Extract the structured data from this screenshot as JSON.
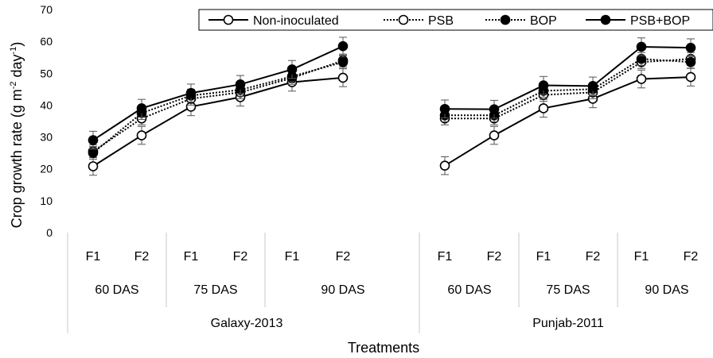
{
  "chart_data": {
    "type": "line",
    "ylabel_main": "Crop growth rate (g m",
    "ylabel_exp1": "-2",
    "ylabel_mid": " day",
    "ylabel_exp2": "-1",
    "ylabel_end": ")",
    "xlabel": "Treatments",
    "ylim": [
      0,
      70
    ],
    "yticks": [
      0,
      10,
      20,
      30,
      40,
      50,
      60,
      70
    ],
    "groups": [
      "Galaxy-2013",
      "Punjab-2011"
    ],
    "stages": [
      "60 DAS",
      "75 DAS",
      "90 DAS"
    ],
    "levels": [
      "F1",
      "F2"
    ],
    "legend_position": "top-right",
    "series": [
      {
        "name": "Non-inoculated",
        "style": "solid",
        "marker": "open",
        "values": [
          [
            20.8,
            30.5,
            39.5,
            42.5,
            47.2,
            48.6
          ],
          [
            21.0,
            30.5,
            39.0,
            42.0,
            48.2,
            48.8
          ]
        ],
        "errors": [
          [
            2.8,
            2.8,
            2.8,
            2.8,
            2.8,
            2.8
          ],
          [
            2.8,
            2.8,
            2.8,
            2.8,
            2.8,
            2.8
          ]
        ]
      },
      {
        "name": "PSB",
        "style": "dotted",
        "marker": "open",
        "values": [
          [
            25.5,
            35.8,
            42.0,
            44.0,
            48.5,
            54.0
          ],
          [
            35.8,
            35.8,
            43.2,
            44.0,
            53.5,
            54.5
          ]
        ],
        "errors": [
          [
            2.0,
            2.0,
            2.0,
            2.0,
            2.0,
            2.0
          ],
          [
            2.0,
            2.0,
            2.0,
            2.0,
            2.0,
            2.0
          ]
        ]
      },
      {
        "name": "BOP",
        "style": "dotted",
        "marker": "filled",
        "values": [
          [
            25.0,
            37.5,
            43.0,
            44.8,
            49.0,
            53.5
          ],
          [
            36.8,
            36.8,
            44.5,
            45.0,
            54.5,
            53.5
          ]
        ],
        "errors": [
          [
            2.0,
            2.0,
            2.0,
            2.0,
            2.0,
            2.0
          ],
          [
            2.0,
            2.0,
            2.0,
            2.0,
            2.0,
            2.0
          ]
        ]
      },
      {
        "name": "PSB+BOP",
        "style": "solid",
        "marker": "filled",
        "values": [
          [
            29.0,
            39.0,
            43.8,
            46.5,
            51.2,
            58.5
          ],
          [
            38.8,
            38.7,
            46.2,
            46.0,
            58.3,
            58.0
          ]
        ],
        "errors": [
          [
            2.8,
            2.8,
            2.8,
            2.8,
            2.8,
            2.8
          ],
          [
            2.8,
            2.8,
            2.8,
            2.8,
            2.8,
            2.8
          ]
        ]
      }
    ]
  }
}
